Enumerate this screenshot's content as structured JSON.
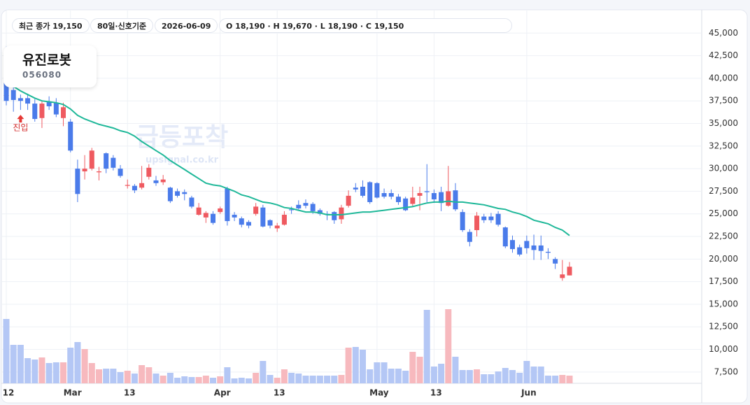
{
  "header": {
    "pills": [
      "최근 종가 19,150",
      "80일·신호기준",
      "2026-06-09",
      "O 18,190 · H 19,670 · L 18,190 · C 19,150"
    ],
    "name": "유진로봇",
    "code": "056080",
    "watermark": "급등포착",
    "watermark_url": "upsignal.co.kr"
  },
  "chart_data": {
    "type": "candlestick",
    "categories": [
      "12",
      null,
      null,
      null,
      null,
      null,
      null,
      null,
      null,
      "Mar",
      null,
      null,
      null,
      null,
      null,
      null,
      null,
      "13",
      null,
      null,
      null,
      null,
      null,
      null,
      null,
      null,
      null,
      null,
      null,
      null,
      "Apr",
      null,
      null,
      null,
      null,
      null,
      null,
      null,
      "13",
      null,
      null,
      null,
      null,
      null,
      null,
      null,
      null,
      null,
      null,
      null,
      null,
      null,
      "May",
      null,
      null,
      null,
      null,
      null,
      null,
      null,
      "13",
      null,
      null,
      null,
      null,
      null,
      null,
      null,
      null,
      null,
      null,
      null,
      null,
      "Jun",
      null,
      null,
      null,
      null,
      null,
      null
    ],
    "open": [
      42200,
      38700,
      37800,
      37800,
      37200,
      35600,
      37400,
      37300,
      35600,
      35200,
      30000,
      29700,
      30000,
      29600,
      31700,
      31200,
      30000,
      28100,
      28100,
      27900,
      29100,
      28700,
      28500,
      27900,
      27500,
      27400,
      26800,
      24900,
      24600,
      25000,
      25200,
      27800,
      24900,
      24500,
      24100,
      25000,
      25700,
      24300,
      23400,
      23800,
      25500,
      26000,
      26200,
      26100,
      25400,
      25000,
      25200,
      24400,
      25900,
      27900,
      28000,
      28500,
      28400,
      27300,
      27300,
      26900,
      26700,
      26100,
      27000,
      27500,
      27300,
      27400,
      25900,
      27600,
      25200,
      23000,
      23200,
      24700,
      24700,
      25000,
      23500,
      22100,
      21300,
      22000,
      21500,
      21500,
      20800,
      20000,
      17900,
      18190
    ],
    "high": [
      43500,
      39000,
      38200,
      38300,
      37700,
      37500,
      38000,
      37800,
      37300,
      35500,
      31000,
      31500,
      32300,
      30200,
      31800,
      31500,
      30400,
      28800,
      28300,
      30300,
      30500,
      29200,
      29300,
      28000,
      27800,
      27700,
      27000,
      26200,
      25300,
      25300,
      25800,
      28000,
      25200,
      24700,
      24300,
      26200,
      26000,
      24400,
      24000,
      25300,
      25800,
      26500,
      26600,
      26300,
      25600,
      25300,
      25300,
      26000,
      27600,
      28400,
      28700,
      28600,
      28500,
      27800,
      27700,
      27200,
      26900,
      28000,
      28000,
      30500,
      27700,
      28000,
      30300,
      28400,
      25500,
      23300,
      25200,
      25000,
      25100,
      25300,
      23600,
      22600,
      21600,
      22600,
      22700,
      22600,
      21200,
      20200,
      19900,
      19670
    ],
    "low": [
      37000,
      36300,
      36500,
      36500,
      35200,
      34500,
      36500,
      35700,
      34700,
      31800,
      26300,
      28800,
      29800,
      28700,
      29500,
      29800,
      29000,
      27800,
      27300,
      27700,
      28800,
      28100,
      28200,
      26200,
      26800,
      26500,
      25600,
      24800,
      24000,
      23800,
      25000,
      23700,
      24200,
      23500,
      23400,
      24800,
      23500,
      23400,
      23000,
      23700,
      25000,
      25500,
      25600,
      25000,
      24800,
      24300,
      23900,
      23900,
      25700,
      27400,
      26800,
      26100,
      26700,
      26700,
      26600,
      26000,
      25300,
      25800,
      25400,
      26300,
      26200,
      25300,
      25800,
      25300,
      23000,
      21400,
      22500,
      24000,
      24000,
      23600,
      21200,
      20700,
      20300,
      20600,
      19900,
      19900,
      20000,
      18900,
      17600,
      18190
    ],
    "close": [
      37500,
      37600,
      37500,
      37200,
      35500,
      37200,
      36900,
      36000,
      36800,
      32000,
      27200,
      30000,
      32000,
      29700,
      30000,
      30100,
      29200,
      28200,
      27600,
      28400,
      30100,
      28400,
      28800,
      26400,
      27000,
      27200,
      25800,
      25700,
      25100,
      24000,
      25600,
      24200,
      24600,
      23800,
      23700,
      25800,
      23600,
      23700,
      23700,
      24900,
      25400,
      25600,
      25900,
      25300,
      25000,
      24900,
      24300,
      25700,
      27000,
      27700,
      27000,
      26300,
      26800,
      26900,
      26900,
      26300,
      25400,
      26800,
      27300,
      27400,
      26600,
      26200,
      27500,
      25500,
      23200,
      21900,
      24800,
      24300,
      24300,
      23800,
      21400,
      21100,
      20500,
      21200,
      21000,
      20900,
      20700,
      19500,
      18300,
      19150
    ],
    "ma": [
      39600,
      39100,
      38600,
      38200,
      37800,
      37500,
      37400,
      37300,
      37100,
      36600,
      35900,
      35500,
      35200,
      34900,
      34700,
      34500,
      34200,
      34000,
      33600,
      33000,
      32500,
      32000,
      31500,
      30900,
      30400,
      29900,
      29400,
      28900,
      28400,
      28200,
      28100,
      27800,
      27500,
      27100,
      26900,
      26600,
      26300,
      26200,
      26000,
      25700,
      25600,
      25400,
      25200,
      25200,
      25100,
      24900,
      24900,
      24900,
      25000,
      25100,
      25200,
      25200,
      25300,
      25400,
      25500,
      25600,
      25700,
      25800,
      26000,
      26200,
      26300,
      26300,
      26400,
      26300,
      26300,
      26200,
      26100,
      26000,
      25800,
      25600,
      25500,
      25200,
      25000,
      24700,
      24300,
      24100,
      23900,
      23500,
      23200,
      22600
    ],
    "volume": [
      92,
      55,
      55,
      36,
      34,
      37,
      29,
      30,
      30,
      51,
      59,
      49,
      29,
      20,
      21,
      21,
      16,
      18,
      14,
      26,
      23,
      14,
      11,
      15,
      8,
      10,
      9,
      9,
      11,
      8,
      10,
      23,
      7,
      8,
      7,
      15,
      32,
      12,
      8,
      20,
      15,
      14,
      11,
      11,
      11,
      11,
      11,
      12,
      51,
      52,
      48,
      20,
      30,
      30,
      21,
      21,
      18,
      45,
      38,
      105,
      24,
      28,
      106,
      38,
      19,
      19,
      20,
      13,
      13,
      17,
      22,
      19,
      15,
      32,
      24,
      24,
      11,
      11,
      12,
      11
    ],
    "up_color": "#ef5a60",
    "down_color": "#4a7bea",
    "up_volume_color": "#f7b9be",
    "down_volume_color": "#b4c7f5",
    "ma_color": "#1fb899",
    "ylim": [
      6250,
      47500
    ],
    "yticks": [
      {
        "value": 7500,
        "label": "7,500"
      },
      {
        "value": 10000,
        "label": "10,000"
      },
      {
        "value": 12500,
        "label": "12,500"
      },
      {
        "value": 15000,
        "label": "15,000"
      },
      {
        "value": 17500,
        "label": "17,500"
      },
      {
        "value": 20000,
        "label": "20,000"
      },
      {
        "value": 22500,
        "label": "22,500"
      },
      {
        "value": 25000,
        "label": "25,000"
      },
      {
        "value": 27500,
        "label": "27,500"
      },
      {
        "value": 30000,
        "label": "30,000"
      },
      {
        "value": 32500,
        "label": "32,500"
      },
      {
        "value": 35000,
        "label": "35,000"
      },
      {
        "value": 37500,
        "label": "37,500"
      },
      {
        "value": 40000,
        "label": "40,000"
      },
      {
        "value": 42500,
        "label": "42,500"
      },
      {
        "value": 45000,
        "label": "45,000"
      }
    ],
    "grid": true,
    "entry": {
      "index": 2,
      "label": "진입"
    }
  }
}
